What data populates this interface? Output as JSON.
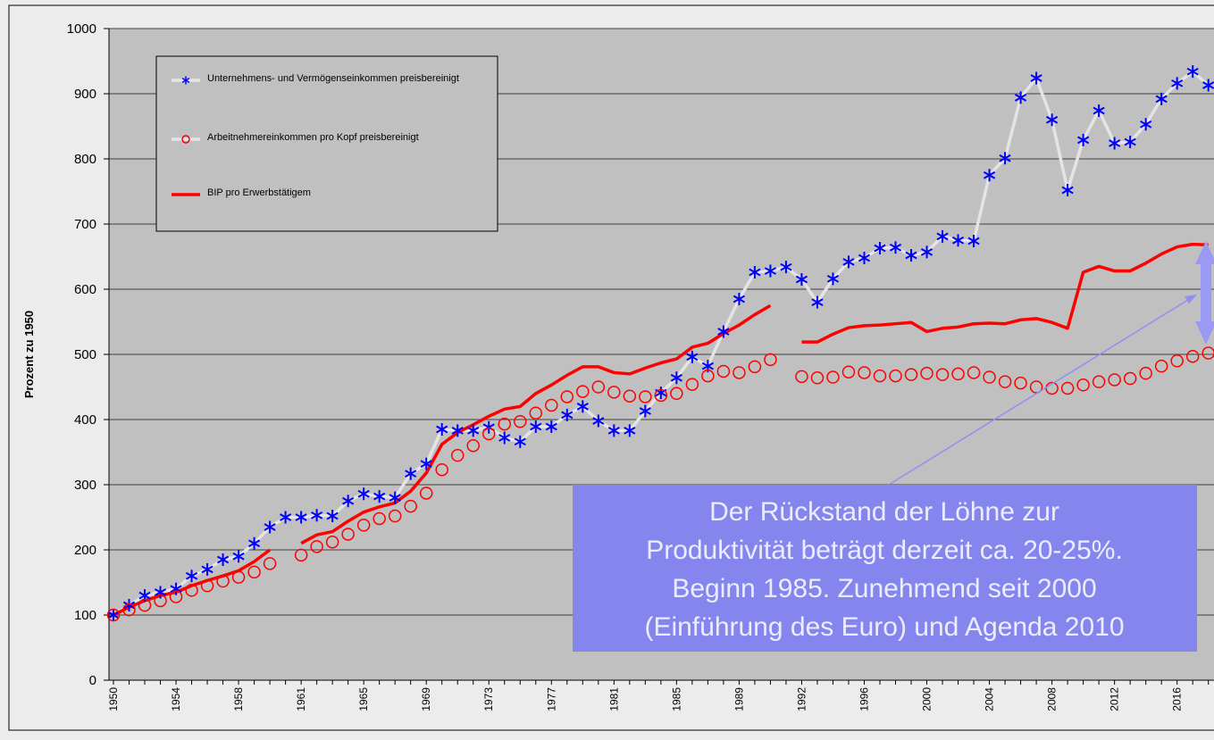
{
  "chart_data": {
    "type": "line",
    "y_label": "Prozent zu 1950",
    "categories": [
      "1950",
      null,
      null,
      null,
      "1954",
      null,
      null,
      null,
      "1958",
      null,
      null,
      null,
      "1961",
      null,
      null,
      null,
      "1965",
      null,
      null,
      null,
      "1969",
      null,
      null,
      null,
      "1973",
      null,
      null,
      null,
      "1977",
      null,
      null,
      null,
      "1981",
      null,
      null,
      null,
      "1985",
      null,
      null,
      null,
      "1989",
      null,
      null,
      null,
      "1992",
      null,
      null,
      null,
      "1996",
      null,
      null,
      null,
      "2000",
      null,
      null,
      null,
      "2004",
      null,
      null,
      null,
      "2008",
      null,
      null,
      null,
      "2012",
      null,
      null,
      null,
      "2016",
      null,
      null
    ],
    "series": [
      {
        "name": "Unternehmens- und Vermögenseinkommen preisbereinigt",
        "marker": "star",
        "color": "#0000ff",
        "line_color": "#e4e4e4",
        "values": [
          100,
          115,
          130,
          135,
          140,
          160,
          170,
          185,
          190,
          210,
          235,
          250,
          250,
          253,
          252,
          275,
          286,
          282,
          280,
          317,
          332,
          385,
          383,
          383,
          388,
          372,
          366,
          389,
          389,
          407,
          420,
          398,
          383,
          383,
          413,
          441,
          464,
          496,
          482,
          535,
          585,
          626,
          628,
          634,
          615,
          580,
          616,
          642,
          648,
          663,
          664,
          652,
          657,
          681,
          675,
          674,
          775,
          801,
          894,
          924,
          860,
          752,
          829,
          874,
          824,
          826,
          853,
          892,
          916,
          934,
          913
        ]
      },
      {
        "name": "Arbeitnehmereinkommen pro Kopf preisbereinigt",
        "marker": "circle",
        "color": "#ff0000",
        "values": [
          100,
          108,
          115,
          122,
          128,
          138,
          145,
          152,
          158,
          166,
          179,
          null,
          192,
          205,
          212,
          224,
          238,
          248,
          252,
          267,
          287,
          323,
          345,
          360,
          378,
          393,
          397,
          410,
          422,
          435,
          443,
          450,
          442,
          436,
          435,
          437,
          440,
          454,
          467,
          474,
          472,
          481,
          492,
          null,
          466,
          464,
          465,
          473,
          472,
          467,
          467,
          469,
          471,
          469,
          470,
          472,
          465,
          458,
          456,
          450,
          448,
          448,
          453,
          458,
          461,
          463,
          471,
          482,
          490,
          497,
          502
        ]
      },
      {
        "name": "BIP pro Erwerbstätigem",
        "marker": "none",
        "color": "#ff0000",
        "line_color": "#ff0000",
        "values": [
          100,
          112,
          122,
          130,
          135,
          145,
          153,
          160,
          168,
          182,
          200,
          null,
          210,
          223,
          228,
          244,
          258,
          266,
          272,
          290,
          318,
          362,
          380,
          392,
          405,
          416,
          420,
          440,
          453,
          468,
          481,
          481,
          472,
          470,
          479,
          487,
          493,
          511,
          517,
          532,
          545,
          561,
          575,
          null,
          519,
          519,
          531,
          541,
          544,
          545,
          547,
          549,
          535,
          540,
          542,
          547,
          548,
          547,
          553,
          555,
          549,
          540,
          626,
          635,
          628,
          628,
          640,
          654,
          665,
          669,
          668
        ]
      }
    ],
    "legend_line_color": "#e4e4e4",
    "ylim": [
      0,
      1000
    ],
    "yticks": [
      0,
      100,
      200,
      300,
      400,
      500,
      600,
      700,
      800,
      900,
      1000
    ],
    "grid": true,
    "annotation": [
      "Der Rückstand der Löhne zur",
      "Produktivität beträgt derzeit ca. 20-25%.",
      "Beginn 1985. Zunehmend seit 2000",
      "(Einführung des Euro) und Agenda 2010"
    ]
  }
}
